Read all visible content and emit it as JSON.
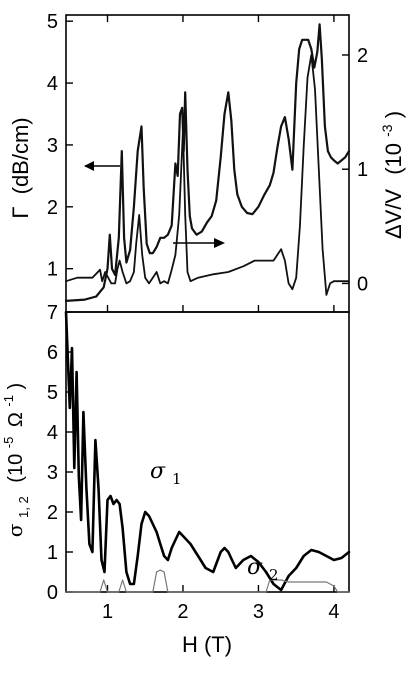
{
  "chart_data": [
    {
      "type": "line",
      "xlim": [
        0.45,
        4.2
      ],
      "ylim": [
        0.3,
        5.1
      ],
      "y2lim": [
        -0.25,
        2.35
      ],
      "xticks": [
        1,
        2,
        3,
        4
      ],
      "yticks": [
        1,
        2,
        3,
        4,
        5
      ],
      "y2ticks": [
        0,
        1,
        2
      ],
      "ylabel_main": "Γ",
      "ylabel_unit": "(dB/cm)",
      "y2label_main": "ΔV/V",
      "y2label_unit": "(10",
      "y2label_exp": "-3",
      "y2label_close": ")",
      "grid": false,
      "series": [
        {
          "axis": "left",
          "x": [
            0.45,
            0.7,
            0.85,
            0.95,
            1.0,
            1.03,
            1.06,
            1.1,
            1.15,
            1.19,
            1.22,
            1.25,
            1.3,
            1.35,
            1.4,
            1.45,
            1.48,
            1.52,
            1.56,
            1.6,
            1.65,
            1.7,
            1.75,
            1.8,
            1.85,
            1.9,
            1.93,
            1.96,
            1.99,
            2.01,
            2.03,
            2.06,
            2.09,
            2.12,
            2.18,
            2.25,
            2.32,
            2.38,
            2.44,
            2.5,
            2.55,
            2.6,
            2.64,
            2.68,
            2.72,
            2.78,
            2.85,
            2.92,
            3.0,
            3.08,
            3.15,
            3.2,
            3.25,
            3.3,
            3.35,
            3.4,
            3.45,
            3.5,
            3.54,
            3.58,
            3.62,
            3.66,
            3.7,
            3.74,
            3.78,
            3.81,
            3.84,
            3.88,
            3.92,
            3.96,
            4.0,
            4.05,
            4.1,
            4.15,
            4.2
          ],
          "values": [
            0.48,
            0.5,
            0.55,
            0.7,
            1.0,
            1.55,
            1.0,
            0.9,
            1.5,
            2.9,
            1.5,
            1.1,
            1.3,
            2.0,
            2.9,
            3.3,
            2.3,
            1.4,
            1.25,
            1.25,
            1.35,
            1.5,
            1.5,
            1.55,
            1.7,
            2.7,
            2.5,
            3.5,
            3.6,
            2.9,
            3.85,
            2.6,
            1.85,
            1.65,
            1.55,
            1.6,
            1.75,
            1.85,
            2.1,
            2.8,
            3.5,
            3.85,
            3.4,
            2.6,
            2.2,
            2.0,
            1.9,
            1.88,
            2.0,
            2.2,
            2.35,
            2.55,
            2.95,
            3.3,
            3.45,
            3.1,
            2.6,
            4.0,
            4.55,
            4.7,
            4.7,
            4.7,
            4.55,
            4.25,
            4.5,
            4.95,
            4.4,
            3.3,
            2.9,
            2.8,
            2.75,
            2.7,
            2.75,
            2.8,
            2.9
          ]
        },
        {
          "axis": "right",
          "x": [
            0.45,
            0.6,
            0.8,
            0.9,
            0.93,
            0.97,
            1.05,
            1.1,
            1.13,
            1.16,
            1.2,
            1.25,
            1.3,
            1.35,
            1.38,
            1.42,
            1.46,
            1.5,
            1.55,
            1.6,
            1.65,
            1.7,
            1.75,
            1.8,
            1.85,
            1.9,
            1.95,
            2.0,
            2.03,
            2.06,
            2.1,
            2.2,
            2.4,
            2.6,
            2.8,
            2.95,
            3.1,
            3.2,
            3.3,
            3.35,
            3.4,
            3.45,
            3.5,
            3.55,
            3.6,
            3.65,
            3.7,
            3.75,
            3.8,
            3.85,
            3.9,
            3.95,
            4.0,
            4.2
          ],
          "values": [
            0.02,
            0.05,
            0.05,
            0.12,
            0.02,
            0.1,
            0.0,
            0.0,
            0.12,
            0.2,
            0.1,
            0.0,
            0.02,
            0.1,
            0.35,
            0.6,
            0.25,
            0.05,
            0.0,
            0.05,
            0.1,
            0.0,
            0.02,
            0.0,
            0.12,
            0.25,
            0.6,
            1.35,
            0.6,
            0.1,
            0.02,
            0.05,
            0.08,
            0.1,
            0.15,
            0.2,
            0.2,
            0.2,
            0.3,
            0.2,
            0.0,
            -0.05,
            0.05,
            0.5,
            1.2,
            1.8,
            2.0,
            1.7,
            1.0,
            0.3,
            -0.1,
            0.0,
            0.02,
            0.02
          ]
        }
      ],
      "annotations": [
        {
          "text": "←",
          "direction": "left"
        },
        {
          "text": "→",
          "direction": "right"
        }
      ]
    },
    {
      "type": "line",
      "xlim": [
        0.45,
        4.2
      ],
      "ylim": [
        0,
        7
      ],
      "xticks": [
        1,
        2,
        3,
        4
      ],
      "yticks": [
        0,
        1,
        2,
        3,
        4,
        5,
        6,
        7
      ],
      "xlabel": "H (T)",
      "ylabel_base": "σ",
      "ylabel_sub": "1, 2",
      "ylabel_unit": "(10",
      "ylabel_exp": "-5",
      "ylabel_unit2": "Ω",
      "ylabel_exp2": "-1",
      "ylabel_close": ")",
      "grid": false,
      "series": [
        {
          "name_base": "σ",
          "name_sub": "1",
          "x": [
            0.45,
            0.5,
            0.53,
            0.56,
            0.59,
            0.62,
            0.65,
            0.68,
            0.72,
            0.76,
            0.8,
            0.84,
            0.88,
            0.92,
            0.96,
            1.0,
            1.04,
            1.08,
            1.12,
            1.16,
            1.2,
            1.25,
            1.3,
            1.35,
            1.4,
            1.45,
            1.5,
            1.55,
            1.6,
            1.65,
            1.7,
            1.75,
            1.8,
            1.85,
            1.9,
            1.95,
            2.0,
            2.1,
            2.2,
            2.3,
            2.4,
            2.5,
            2.55,
            2.6,
            2.65,
            2.7,
            2.8,
            2.9,
            3.0,
            3.1,
            3.2,
            3.3,
            3.4,
            3.5,
            3.6,
            3.7,
            3.8,
            3.9,
            4.0,
            4.1,
            4.2
          ],
          "values": [
            7.0,
            4.6,
            6.1,
            3.1,
            5.5,
            2.9,
            1.8,
            4.5,
            2.6,
            1.2,
            1.0,
            3.8,
            2.6,
            0.8,
            0.5,
            2.3,
            2.4,
            2.2,
            2.3,
            2.2,
            1.6,
            0.5,
            0.2,
            0.2,
            0.9,
            1.7,
            2.0,
            1.9,
            1.7,
            1.5,
            1.2,
            0.9,
            0.8,
            1.1,
            1.3,
            1.5,
            1.4,
            1.2,
            0.9,
            0.6,
            0.5,
            1.0,
            1.1,
            1.0,
            0.8,
            0.6,
            0.8,
            0.9,
            0.75,
            0.5,
            0.2,
            0.05,
            0.4,
            0.6,
            0.9,
            1.05,
            1.0,
            0.9,
            0.8,
            0.85,
            1.0
          ]
        },
        {
          "name_base": "σ",
          "name_sub": "2",
          "x": [
            0.45,
            0.9,
            0.95,
            1.0,
            1.05,
            1.15,
            1.2,
            1.25,
            1.3,
            1.6,
            1.65,
            1.7,
            1.75,
            1.8,
            1.9,
            3.1,
            3.15,
            3.2,
            3.25,
            3.3,
            3.4,
            3.9,
            4.0,
            4.05,
            4.2
          ],
          "values": [
            0,
            0,
            0.3,
            0,
            0,
            0,
            0.3,
            0,
            0,
            0,
            0.5,
            0.55,
            0.5,
            0,
            0,
            0,
            0.3,
            0.3,
            0.3,
            0.3,
            0.25,
            0.25,
            0.15,
            0,
            0
          ]
        }
      ]
    }
  ]
}
